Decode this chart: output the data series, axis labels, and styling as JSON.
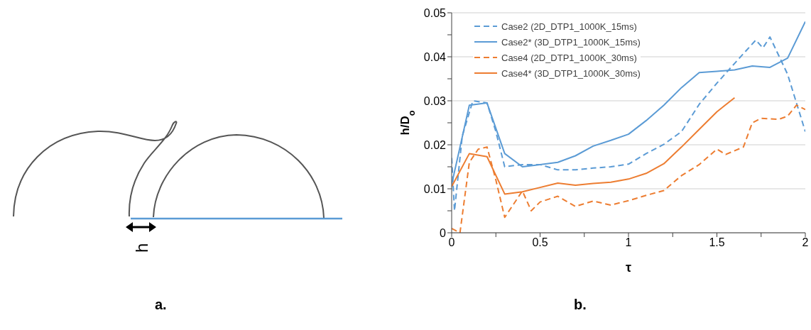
{
  "chart_data": {
    "type": "line",
    "xlabel": "τ",
    "ylabel": "h/D$_{o}$",
    "xlim": [
      0,
      2
    ],
    "xticks": [
      0,
      {
        "value": 0.25,
        "label": null
      },
      0.5,
      {
        "value": 0.75,
        "label": null
      },
      1,
      {
        "value": 1.25,
        "label": null
      },
      1.5,
      {
        "value": 1.75,
        "label": null
      },
      2
    ],
    "ylim": [
      0,
      0.05
    ],
    "yticks": [
      0,
      {
        "value": 0.005,
        "label": null
      },
      0.01,
      {
        "value": 0.015,
        "label": null
      },
      0.02,
      {
        "value": 0.025,
        "label": null
      },
      0.03,
      {
        "value": 0.035,
        "label": null
      },
      0.04,
      {
        "value": 0.045,
        "label": null
      },
      0.05
    ],
    "grid": "y",
    "legend": "top left",
    "marker": "none",
    "annotations": [
      "h",
      "a.",
      "b."
    ],
    "series": [
      {
        "name": "Case2 (2D_DTP1_1000K_15ms)",
        "color": "#5b9bd5",
        "line_style": "dashed",
        "x": [
          0,
          0.016,
          0.06,
          0.12,
          0.2,
          0.25,
          0.3,
          0.4,
          0.5,
          0.6,
          0.7,
          0.8,
          0.9,
          1.0,
          1.1,
          1.2,
          1.3,
          1.4,
          1.5,
          1.6,
          1.72,
          1.76,
          1.8,
          1.9,
          2.0
        ],
        "values": [
          0.017,
          0.005,
          0.022,
          0.03,
          0.0295,
          0.023,
          0.015,
          0.0155,
          0.0155,
          0.0143,
          0.0143,
          0.0147,
          0.015,
          0.0156,
          0.018,
          0.0201,
          0.023,
          0.0292,
          0.034,
          0.0385,
          0.0438,
          0.042,
          0.0445,
          0.036,
          0.023
        ]
      },
      {
        "name": "Case2* (3D_DTP1_1000K_15ms)",
        "color": "#5b9bd5",
        "line_style": "solid",
        "x": [
          0,
          0.1,
          0.2,
          0.3,
          0.4,
          0.5,
          0.6,
          0.7,
          0.8,
          0.9,
          1.0,
          1.1,
          1.2,
          1.3,
          1.4,
          1.5,
          1.6,
          1.7,
          1.8,
          1.9,
          2.0
        ],
        "values": [
          0.011,
          0.029,
          0.0295,
          0.018,
          0.015,
          0.0155,
          0.016,
          0.0175,
          0.0197,
          0.021,
          0.0224,
          0.0255,
          0.029,
          0.033,
          0.0364,
          0.0367,
          0.037,
          0.0379,
          0.0376,
          0.0397,
          0.048
        ]
      },
      {
        "name": "Case4 (2D_DTP1_1000K_30ms)",
        "color": "#ed7d31",
        "line_style": "dashed",
        "x": [
          0,
          0.047,
          0.1,
          0.15,
          0.2,
          0.25,
          0.3,
          0.35,
          0.4,
          0.45,
          0.5,
          0.6,
          0.7,
          0.8,
          0.9,
          1.0,
          1.1,
          1.2,
          1.3,
          1.4,
          1.5,
          1.55,
          1.65,
          1.7,
          1.75,
          1.85,
          1.9,
          1.95,
          2.0
        ],
        "values": [
          0.001,
          0,
          0.016,
          0.019,
          0.0195,
          0.012,
          0.0035,
          0.0065,
          0.0095,
          0.005,
          0.007,
          0.0083,
          0.006,
          0.0072,
          0.0063,
          0.0073,
          0.0085,
          0.0096,
          0.013,
          0.0155,
          0.019,
          0.0178,
          0.0195,
          0.025,
          0.026,
          0.0258,
          0.0265,
          0.029,
          0.028
        ]
      },
      {
        "name": "Case4* (3D_DTP1_1000K_30ms)",
        "color": "#ed7d31",
        "line_style": "solid",
        "x": [
          0,
          0.1,
          0.2,
          0.3,
          0.4,
          0.5,
          0.6,
          0.7,
          0.8,
          0.9,
          1.0,
          1.1,
          1.2,
          1.3,
          1.4,
          1.5,
          1.6
        ],
        "values": [
          0.0105,
          0.018,
          0.0173,
          0.0088,
          0.0093,
          0.0103,
          0.0113,
          0.0108,
          0.0112,
          0.0115,
          0.0122,
          0.0135,
          0.0157,
          0.0195,
          0.0235,
          0.0275,
          0.0307
        ]
      }
    ]
  }
}
